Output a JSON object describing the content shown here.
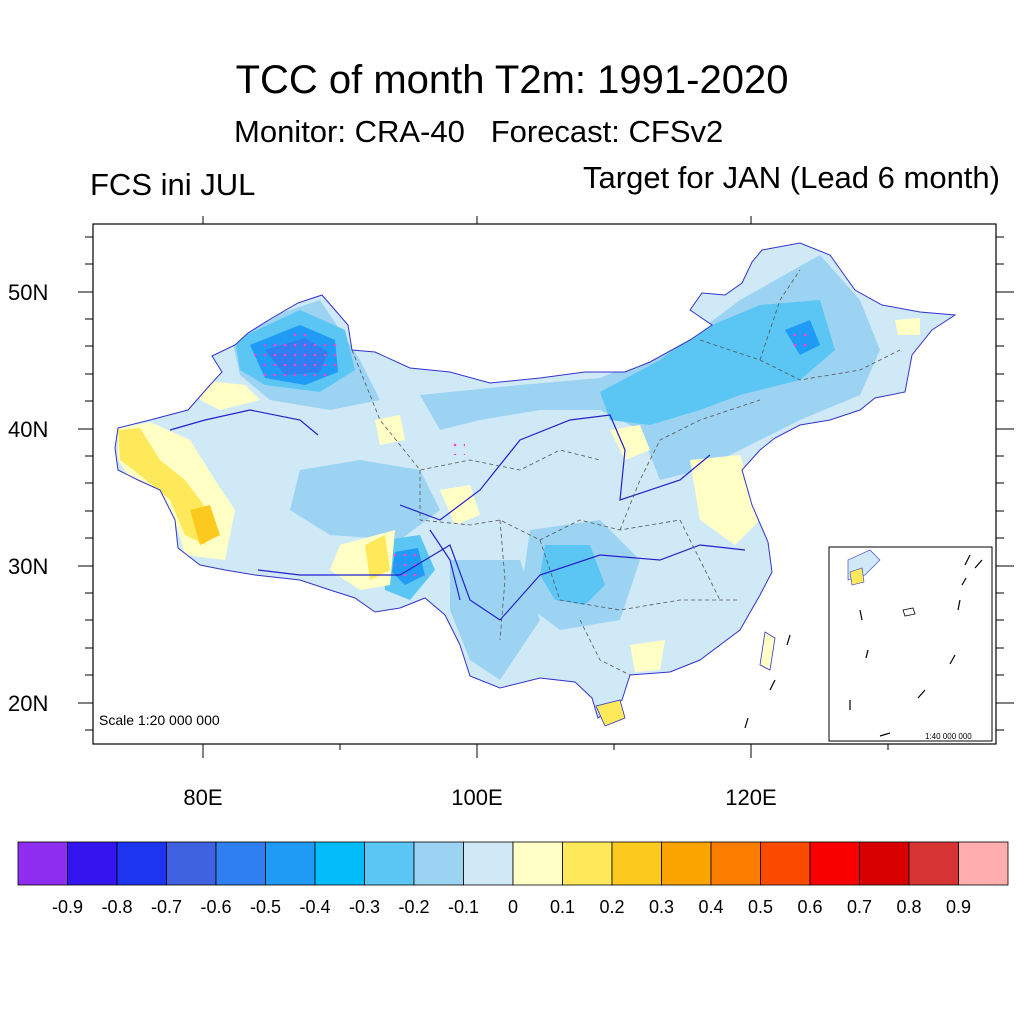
{
  "title": "TCC of month T2m: 1991-2020",
  "subtitle": "Monitor: CRA-40   Forecast: CFSv2",
  "left_label": "FCS ini JUL",
  "right_label": "Target for JAN (Lead 6 month)",
  "scale_main": "Scale 1:20 000 000",
  "scale_inset": "1:40 000 000",
  "lat_ticks": [
    "50N",
    "40N",
    "30N",
    "20N"
  ],
  "lon_ticks": [
    "80E",
    "100E",
    "120E"
  ],
  "colorbar": {
    "colors": [
      "#8f2ef0",
      "#3415f0",
      "#1d34f0",
      "#3f62e0",
      "#2f7ff0",
      "#1f9af5",
      "#03bcfa",
      "#5bc6f4",
      "#9dd3f2",
      "#cfe9f7",
      "#ffffc6",
      "#fde95a",
      "#fcc91f",
      "#fba400",
      "#fa7d00",
      "#fa4b00",
      "#fa0000",
      "#d80000",
      "#d63434",
      "#ffadad"
    ],
    "labels": [
      "-0.9",
      "-0.8",
      "-0.7",
      "-0.6",
      "-0.5",
      "-0.4",
      "-0.3",
      "-0.2",
      "-0.1",
      "0",
      "0.1",
      "0.2",
      "0.3",
      "0.4",
      "0.5",
      "0.6",
      "0.7",
      "0.8",
      "0.9"
    ]
  }
}
